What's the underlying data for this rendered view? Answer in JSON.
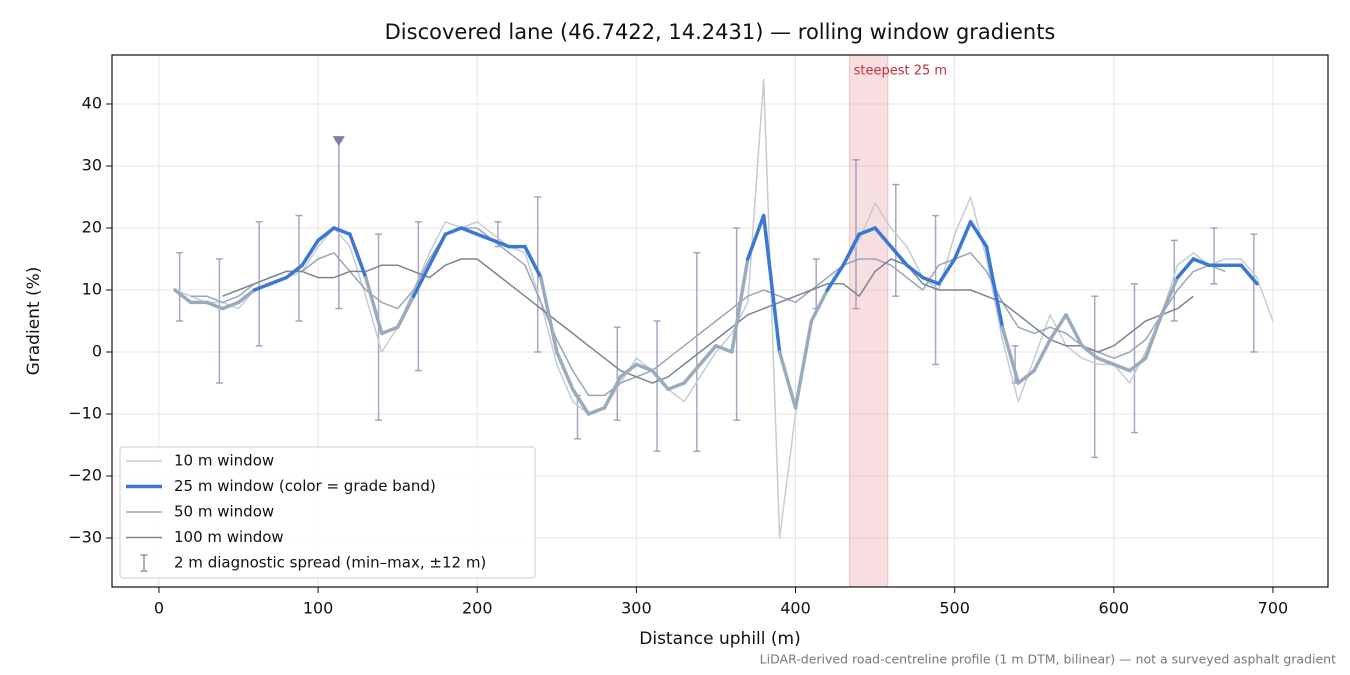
{
  "chart_data": {
    "type": "line",
    "title": "Discovered lane (46.7422, 14.2431) — rolling window gradients",
    "xlabel": "Distance uphill (m)",
    "ylabel": "Gradient (%)",
    "footnote": "LiDAR-derived road-centreline profile (1 m DTM, bilinear) — not a surveyed asphalt gradient",
    "x": [
      10,
      20,
      30,
      40,
      50,
      60,
      70,
      80,
      90,
      100,
      110,
      120,
      130,
      140,
      150,
      160,
      170,
      180,
      190,
      200,
      210,
      220,
      230,
      240,
      250,
      260,
      270,
      280,
      290,
      300,
      310,
      320,
      330,
      340,
      350,
      360,
      370,
      380,
      390,
      400,
      410,
      420,
      430,
      440,
      450,
      460,
      470,
      480,
      490,
      500,
      510,
      520,
      530,
      540,
      550,
      560,
      570,
      580,
      590,
      600,
      610,
      620,
      630,
      640,
      650,
      660,
      670,
      680,
      690,
      700
    ],
    "series": [
      {
        "name": "10 m window",
        "color": "#c5ccd6",
        "values": [
          10,
          9,
          8,
          8,
          7,
          10,
          11,
          12,
          13,
          17,
          20,
          17,
          9,
          0,
          4,
          10,
          16,
          21,
          20,
          21,
          19,
          17,
          16,
          8,
          -2,
          -8,
          -10,
          -9,
          -5,
          -1,
          -3,
          -6,
          -8,
          -4,
          0,
          3,
          8,
          44,
          -30,
          -10,
          5,
          10,
          14,
          18,
          24,
          20,
          17,
          12,
          10,
          19,
          25,
          15,
          2,
          -8,
          -1,
          6,
          1,
          -1,
          -2,
          -2,
          -5,
          0,
          6,
          14,
          16,
          14,
          15,
          15,
          12,
          5
        ]
      },
      {
        "name": "25 m window (color = grade band)",
        "color": "#3a78d4",
        "values": [
          10,
          8,
          8,
          7,
          8,
          10,
          11,
          12,
          14,
          18,
          20,
          19,
          12,
          3,
          4,
          9,
          14,
          19,
          20,
          19,
          18,
          17,
          17,
          12,
          0,
          -6,
          -10,
          -9,
          -4,
          -2,
          -3,
          -6,
          -5,
          -2,
          1,
          0,
          15,
          22,
          0,
          -9,
          5,
          10,
          14,
          19,
          20,
          17,
          14,
          12,
          11,
          15,
          21,
          17,
          4,
          -5,
          -3,
          2,
          6,
          1,
          -1,
          -2,
          -3,
          -1,
          6,
          12,
          15,
          14,
          14,
          14,
          11,
          null
        ],
        "grade_bands": {
          "thresholds": [
            10,
            20
          ],
          "colors": [
            "#9aabbd",
            "#3a78d4",
            "#e08a0b"
          ]
        }
      },
      {
        "name": "50 m window",
        "color": "#9aa6b8",
        "values": [
          null,
          9,
          9,
          8,
          9,
          11,
          12,
          13,
          13,
          15,
          16,
          13,
          10,
          8,
          7,
          10,
          15,
          19,
          20,
          20,
          18,
          16,
          14,
          8,
          2,
          -3,
          -7,
          -7,
          -5,
          -4,
          -3,
          -1,
          1,
          3,
          5,
          7,
          9,
          10,
          9,
          8,
          10,
          12,
          14,
          15,
          15,
          14,
          12,
          10,
          14,
          15,
          16,
          13,
          8,
          4,
          3,
          4,
          3,
          1,
          0,
          -1,
          0,
          2,
          6,
          10,
          13,
          14,
          13,
          null,
          null,
          null
        ]
      },
      {
        "name": "100 m window",
        "color": "#7c8494",
        "values": [
          null,
          null,
          null,
          9,
          10,
          11,
          12,
          13,
          13,
          12,
          12,
          13,
          13,
          14,
          14,
          13,
          12,
          14,
          15,
          15,
          13,
          11,
          9,
          7,
          5,
          3,
          1,
          -1,
          -3,
          -4,
          -5,
          -4,
          -2,
          0,
          2,
          4,
          6,
          7,
          8,
          9,
          10,
          11,
          11,
          9,
          13,
          15,
          14,
          11,
          10,
          10,
          10,
          9,
          8,
          6,
          4,
          2,
          1,
          1,
          0,
          1,
          3,
          5,
          6,
          7,
          9,
          null,
          null,
          null,
          null,
          null
        ]
      }
    ],
    "errorbars": {
      "name": "2 m diagnostic spread (min–max, ±12 m)",
      "color": "#9590b5",
      "x": [
        13,
        38,
        63,
        88,
        113,
        138,
        163,
        213,
        238,
        263,
        288,
        313,
        338,
        363,
        413,
        438,
        463,
        488,
        538,
        588,
        613,
        638,
        663,
        688
      ],
      "min": [
        5,
        -5,
        1,
        5,
        7,
        -11,
        -3,
        17,
        0,
        -14,
        -11,
        -16,
        -16,
        -11,
        7,
        7,
        9,
        -2,
        -5,
        -17,
        -13,
        5,
        11,
        0
      ],
      "max": [
        16,
        15,
        21,
        22,
        34,
        19,
        21,
        21,
        25,
        -7,
        4,
        5,
        16,
        20,
        15,
        31,
        27,
        22,
        1,
        9,
        11,
        18,
        20,
        19
      ]
    },
    "highlight_point": {
      "x": 113,
      "y": 34,
      "color": "#8a78a8"
    },
    "span": {
      "x": [
        434,
        458
      ],
      "label": "steepest 25 m",
      "color": "#e8a0a8",
      "label_color": "#c0303a"
    },
    "xlim": [
      -29.5,
      734.6
    ],
    "ylim": [
      -37.9,
      47.9
    ],
    "xticks": [
      0,
      100,
      200,
      300,
      400,
      500,
      600,
      700
    ],
    "yticks": [
      {
        "value": -30,
        "label": "−30"
      },
      {
        "value": -20,
        "label": "−20"
      },
      {
        "value": -10,
        "label": "−10"
      },
      0,
      10,
      20,
      30,
      40
    ],
    "grid": true,
    "legend": "lower left"
  }
}
